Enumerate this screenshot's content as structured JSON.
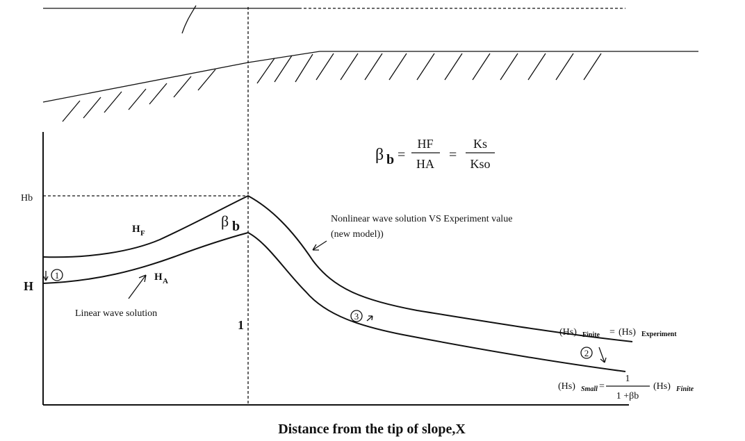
{
  "axis": {
    "y_label": "H",
    "x_label": "Distance from the tip of slope,X",
    "hb_label": "Hb",
    "unit_label": "1"
  },
  "curves": {
    "upper": {
      "base": "H",
      "sub": "F"
    },
    "lower": {
      "base": "H",
      "sub": "A"
    },
    "peak": {
      "base": "β",
      "sub": "b"
    }
  },
  "annotations": {
    "linear": "Linear wave solution",
    "nonlinear": [
      "Nonlinear wave solution VS  Experiment value",
      "(new model))"
    ],
    "markers": [
      "1",
      "2",
      "3"
    ]
  },
  "formula": {
    "lhs": "β",
    "lhs_sub": "b",
    "eq1": "=",
    "num1": "HF",
    "den1": "HA",
    "eq2": "=",
    "num2": "Ks",
    "den2": "Kso"
  },
  "finite": {
    "hs1": "(Hs)",
    "sub1": "Finite",
    "eq": "=",
    "hs2": "(Hs)",
    "sub2": "Experiment"
  },
  "small": {
    "hs1": "(Hs)",
    "sub1": "Small",
    "eq": "=",
    "num": "1",
    "den": "1 +βb",
    "hs2": "(Hs)",
    "sub2": "Finite"
  }
}
